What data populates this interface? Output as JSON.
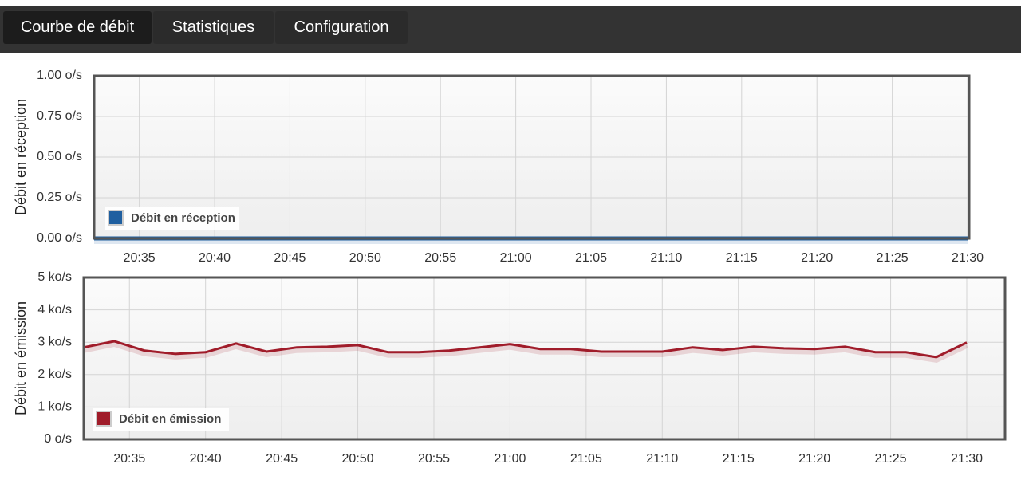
{
  "tabs": [
    "Courbe de débit",
    "Statistiques",
    "Configuration"
  ],
  "active_tab": 0,
  "chart_data": [
    {
      "type": "line",
      "ylabel": "Débit en réception",
      "grid": true,
      "legend": "lower left",
      "x": [
        "20:32",
        "20:34",
        "20:36",
        "20:38",
        "20:40",
        "20:42",
        "20:44",
        "20:46",
        "20:48",
        "20:50",
        "20:52",
        "20:54",
        "20:56",
        "20:58",
        "21:00",
        "21:02",
        "21:04",
        "21:06",
        "21:08",
        "21:10",
        "21:12",
        "21:14",
        "21:16",
        "21:18",
        "21:20",
        "21:22",
        "21:24",
        "21:26",
        "21:28",
        "21:30"
      ],
      "series": [
        {
          "name": "Débit en réception",
          "color": "#1f5fa0",
          "values": [
            0,
            0,
            0,
            0,
            0,
            0,
            0,
            0,
            0,
            0,
            0,
            0,
            0,
            0,
            0,
            0,
            0,
            0,
            0,
            0,
            0,
            0,
            0,
            0,
            0,
            0,
            0,
            0,
            0,
            0
          ]
        }
      ],
      "xlim": [
        "20:32",
        "21:30"
      ],
      "xticks": [
        "20:35",
        "20:40",
        "20:45",
        "20:50",
        "20:55",
        "21:00",
        "21:05",
        "21:10",
        "21:15",
        "21:20",
        "21:25",
        "21:30"
      ],
      "ylim": [
        0,
        1
      ],
      "yticks": [
        {
          "value": 0,
          "label": "0.00 o/s"
        },
        {
          "value": 0.25,
          "label": "0.25 o/s"
        },
        {
          "value": 0.5,
          "label": "0.50 o/s"
        },
        {
          "value": 0.75,
          "label": "0.75 o/s"
        },
        {
          "value": 1,
          "label": "1.00 o/s"
        }
      ]
    },
    {
      "type": "line",
      "ylabel": "Débit en émission",
      "grid": true,
      "legend": "lower left",
      "x": [
        "20:32",
        "20:34",
        "20:36",
        "20:38",
        "20:40",
        "20:42",
        "20:44",
        "20:46",
        "20:48",
        "20:50",
        "20:52",
        "20:54",
        "20:56",
        "20:58",
        "21:00",
        "21:02",
        "21:04",
        "21:06",
        "21:08",
        "21:10",
        "21:12",
        "21:14",
        "21:16",
        "21:18",
        "21:20",
        "21:22",
        "21:24",
        "21:26",
        "21:28",
        "21:30"
      ],
      "series": [
        {
          "name": "Débit en émission",
          "color": "#a01c2a",
          "values": [
            2.84,
            3.03,
            2.74,
            2.64,
            2.69,
            2.96,
            2.71,
            2.84,
            2.86,
            2.91,
            2.69,
            2.69,
            2.74,
            2.84,
            2.94,
            2.79,
            2.79,
            2.71,
            2.71,
            2.71,
            2.84,
            2.76,
            2.86,
            2.81,
            2.79,
            2.86,
            2.69,
            2.69,
            2.54,
            2.99
          ]
        }
      ],
      "xlim": [
        "20:32",
        "21:30"
      ],
      "xticks": [
        "20:35",
        "20:40",
        "20:45",
        "20:50",
        "20:55",
        "21:00",
        "21:05",
        "21:10",
        "21:15",
        "21:20",
        "21:25",
        "21:30"
      ],
      "ylim": [
        0,
        5
      ],
      "yticks": [
        {
          "value": 0,
          "label": "0 o/s"
        },
        {
          "value": 1,
          "label": "1 ko/s"
        },
        {
          "value": 2,
          "label": "2 ko/s"
        },
        {
          "value": 3,
          "label": "3 ko/s"
        },
        {
          "value": 4,
          "label": "4 ko/s"
        },
        {
          "value": 5,
          "label": "5 ko/s"
        }
      ]
    }
  ]
}
